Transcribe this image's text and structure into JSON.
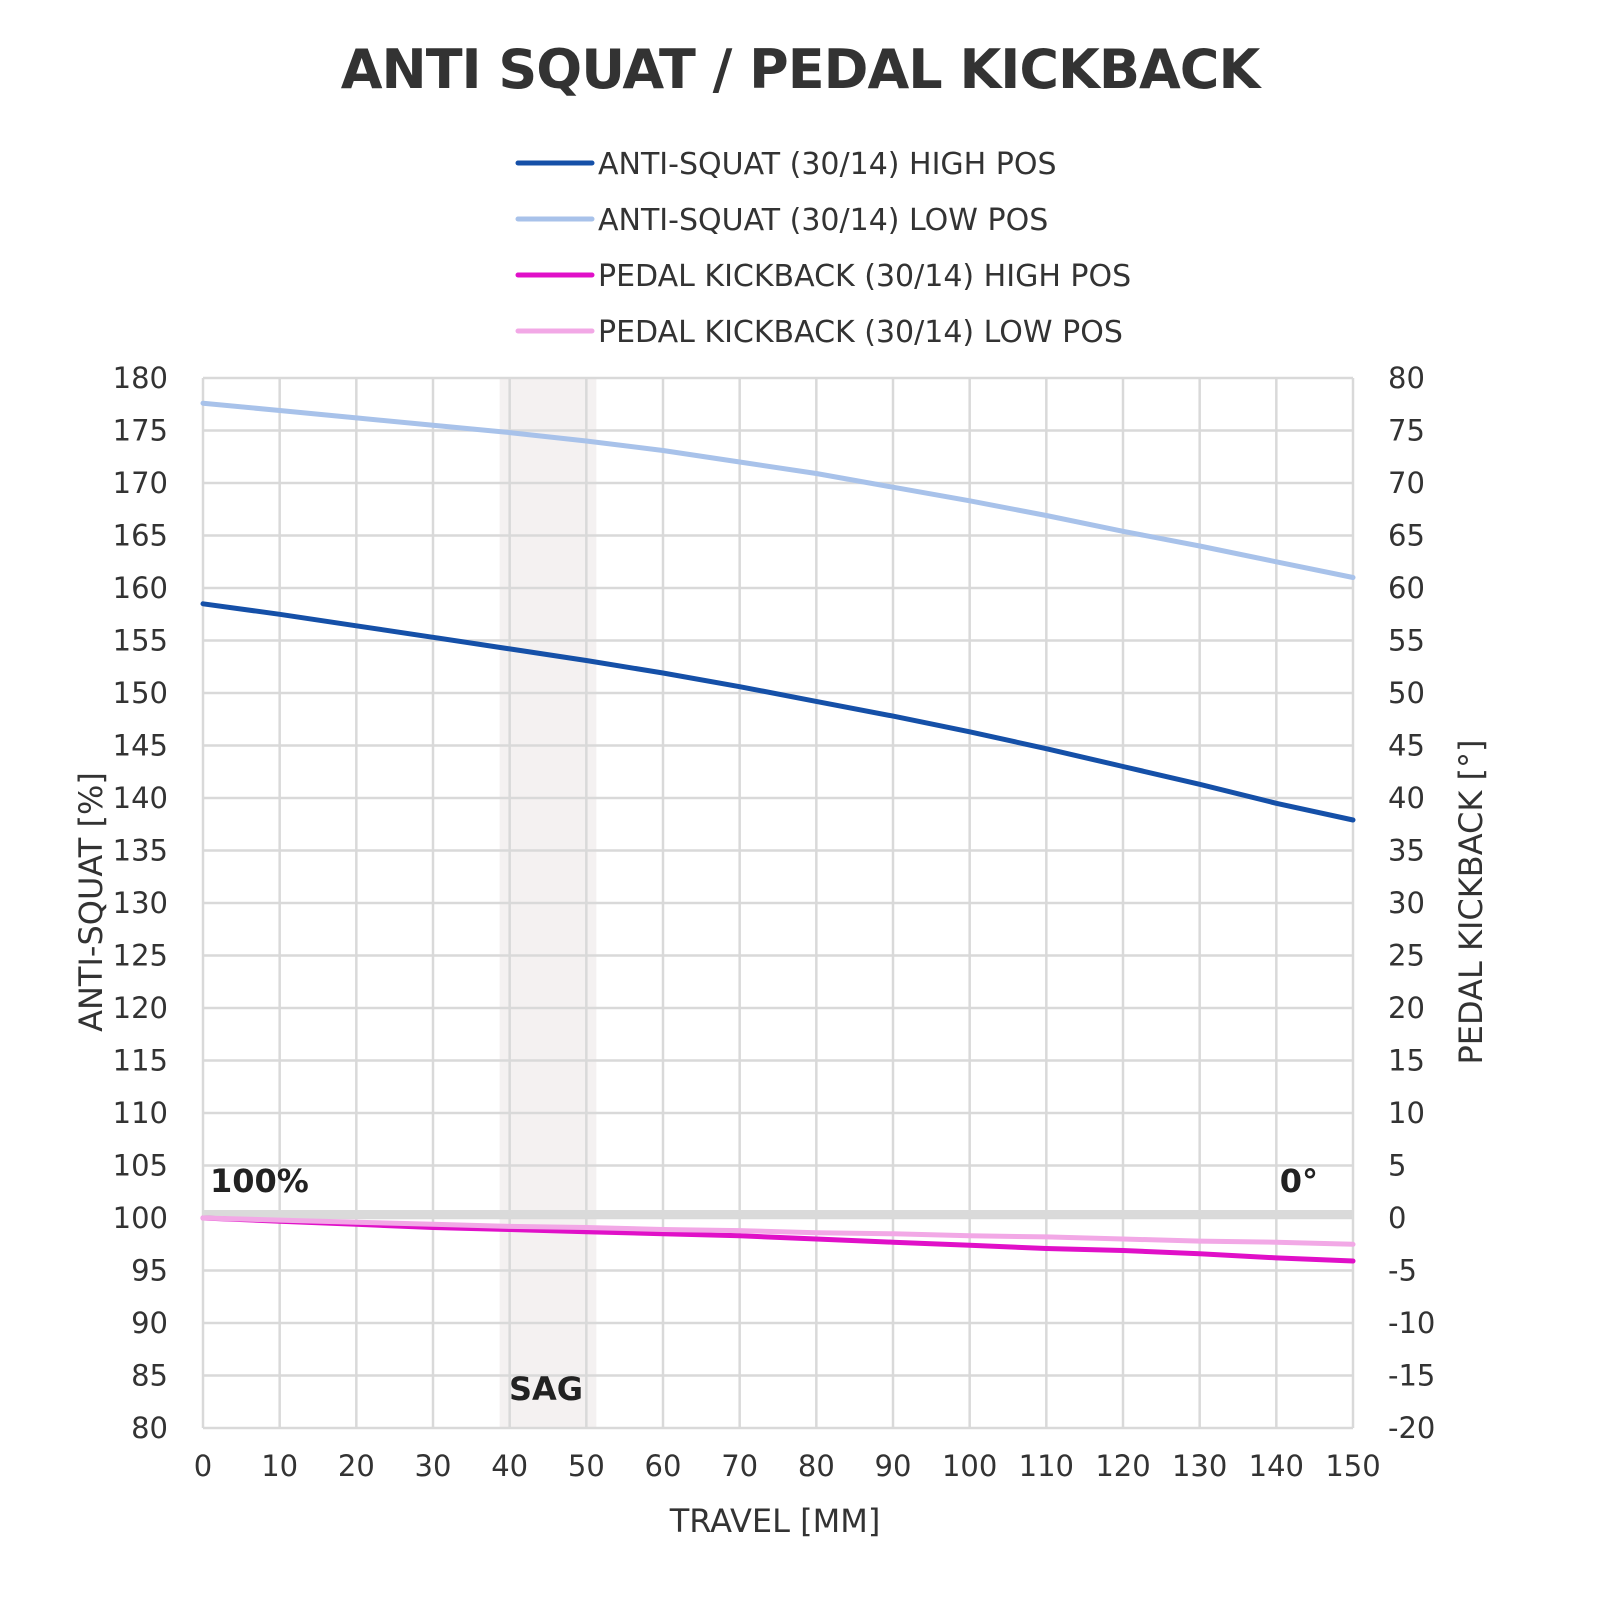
{
  "chart_data": {
    "type": "line",
    "title": "ANTI SQUAT / PEDAL KICKBACK",
    "xlabel": "TRAVEL [MM]",
    "ylabel": "ANTI-SQUAT [%]",
    "y2label": "PEDAL KICKBACK [°]",
    "xlim": [
      0,
      150
    ],
    "ylim": [
      80,
      180
    ],
    "y2lim": [
      -20,
      80
    ],
    "x_ticks": [
      "0",
      "10",
      "20",
      "30",
      "40",
      "50",
      "60",
      "70",
      "80",
      "90",
      "100",
      "110",
      "120",
      "130",
      "140",
      "150"
    ],
    "y_ticks": [
      "80",
      "85",
      "90",
      "95",
      "100",
      "105",
      "110",
      "115",
      "120",
      "125",
      "130",
      "135",
      "140",
      "145",
      "150",
      "155",
      "160",
      "165",
      "170",
      "175",
      "180"
    ],
    "y2_ticks": [
      "-20",
      "-15",
      "-10",
      "-5",
      "0",
      "5",
      "10",
      "15",
      "20",
      "25",
      "30",
      "35",
      "40",
      "45",
      "50",
      "55",
      "60",
      "65",
      "70",
      "75",
      "80"
    ],
    "grid": true,
    "legend_position": "top",
    "x": [
      0,
      10,
      20,
      30,
      40,
      50,
      60,
      70,
      80,
      90,
      100,
      110,
      120,
      130,
      140,
      150
    ],
    "series": [
      {
        "name": "ANTI-SQUAT (30/14) HIGH POS",
        "axis": "left",
        "color": "#1550a8",
        "values": [
          158.5,
          157.5,
          156.4,
          155.3,
          154.2,
          153.1,
          151.9,
          150.6,
          149.2,
          147.8,
          146.3,
          144.7,
          143.0,
          141.3,
          139.5,
          137.9
        ]
      },
      {
        "name": "ANTI-SQUAT (30/14) LOW POS",
        "axis": "left",
        "color": "#a8c2ea",
        "values": [
          177.6,
          176.9,
          176.2,
          175.5,
          174.8,
          174.0,
          173.1,
          172.0,
          170.9,
          169.6,
          168.3,
          166.9,
          165.4,
          164.0,
          162.5,
          161.0
        ]
      },
      {
        "name": "PEDAL KICKBACK (30/14) HIGH POS",
        "axis": "right",
        "color": "#e010c8",
        "values": [
          0.0,
          -0.3,
          -0.6,
          -0.9,
          -1.1,
          -1.3,
          -1.5,
          -1.7,
          -2.0,
          -2.3,
          -2.6,
          -2.9,
          -3.1,
          -3.4,
          -3.8,
          -4.1
        ]
      },
      {
        "name": "PEDAL KICKBACK (30/14) LOW POS",
        "axis": "right",
        "color": "#f2a8e6",
        "values": [
          0.0,
          -0.2,
          -0.4,
          -0.6,
          -0.8,
          -0.9,
          -1.1,
          -1.2,
          -1.4,
          -1.5,
          -1.7,
          -1.8,
          -2.0,
          -2.2,
          -2.3,
          -2.5
        ]
      }
    ],
    "sag_band": {
      "label": "SAG",
      "x_range": [
        40,
        50
      ],
      "color": "#f4f1f1"
    },
    "reference_line": {
      "y": 100,
      "color": "#dadada"
    },
    "annotations": {
      "left": "100%",
      "right": "0°"
    }
  }
}
